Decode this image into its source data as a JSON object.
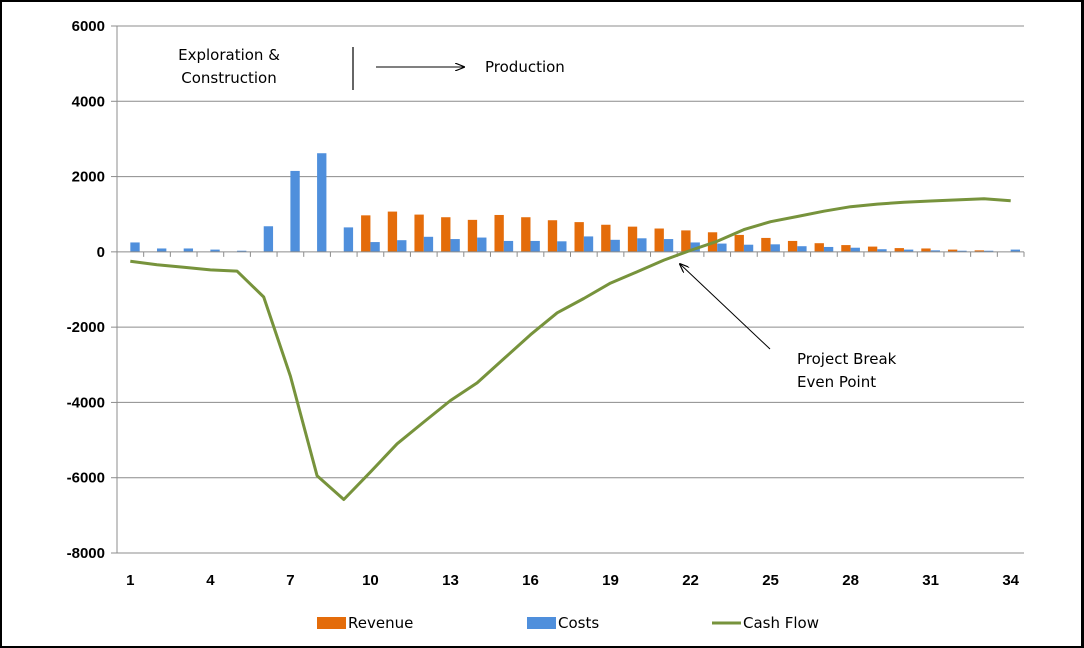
{
  "chart_data": {
    "type": "bar",
    "title": "",
    "xlabel": "",
    "ylabel": "",
    "ylim": [
      -8000,
      6000
    ],
    "yticks": [
      6000,
      4000,
      2000,
      0,
      -2000,
      -4000,
      -6000,
      -8000
    ],
    "ytick_labels": [
      "6000",
      "4000",
      "2000",
      "0",
      "-2000",
      "-4000",
      "-6000",
      "-8000"
    ],
    "xtick_labels": [
      "1",
      "4",
      "7",
      "10",
      "13",
      "16",
      "19",
      "22",
      "25",
      "28",
      "31",
      "34"
    ],
    "grid": "horizontal",
    "legend_position": "bottom",
    "categories": [
      1,
      2,
      3,
      4,
      5,
      6,
      7,
      8,
      9,
      10,
      11,
      12,
      13,
      14,
      15,
      16,
      17,
      18,
      19,
      20,
      21,
      22,
      23,
      24,
      25,
      26,
      27,
      28,
      29,
      30,
      31,
      32,
      33,
      34
    ],
    "series": [
      {
        "name": "Revenue",
        "type": "bar",
        "color": "#e46c0a",
        "values": [
          0,
          0,
          0,
          0,
          0,
          0,
          0,
          0,
          0,
          970,
          1070,
          990,
          920,
          850,
          980,
          920,
          840,
          790,
          720,
          670,
          620,
          570,
          520,
          450,
          370,
          290,
          230,
          180,
          140,
          100,
          90,
          60,
          40,
          0
        ]
      },
      {
        "name": "Costs",
        "type": "bar",
        "color": "#4f8fdc",
        "values": [
          250,
          90,
          90,
          60,
          30,
          680,
          2150,
          2620,
          650,
          260,
          310,
          400,
          340,
          380,
          290,
          290,
          280,
          410,
          320,
          360,
          340,
          250,
          220,
          190,
          200,
          150,
          130,
          110,
          70,
          60,
          40,
          30,
          30,
          60
        ]
      },
      {
        "name": "Cash Flow",
        "type": "line",
        "color": "#77933c",
        "values": [
          -250,
          -340,
          -410,
          -480,
          -510,
          -1200,
          -3300,
          -5950,
          -6580,
          -5850,
          -5100,
          -4520,
          -3950,
          -3480,
          -2840,
          -2200,
          -1620,
          -1240,
          -830,
          -530,
          -220,
          40,
          280,
          590,
          800,
          940,
          1080,
          1200,
          1270,
          1320,
          1350,
          1380,
          1410,
          1360
        ]
      }
    ],
    "annotations": {
      "phase1_line1": "Exploration &",
      "phase1_line2": "Construction",
      "phase2": "Production",
      "breakeven_line1": "Project Break",
      "breakeven_line2": "Even Point"
    }
  }
}
